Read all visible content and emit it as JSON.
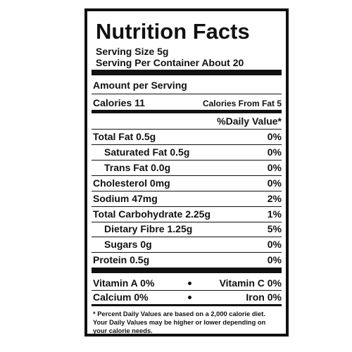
{
  "header": {
    "title": "Nutrition Facts",
    "serving_size": "Serving Size 5g",
    "servings_per_container": "Serving Per Container About 20"
  },
  "amount_per_serving": "Amount per Serving",
  "calories": "Calories 11",
  "calories_from_fat": "Calories From Fat 5",
  "daily_value_header": "%Daily Value*",
  "nutrients": [
    {
      "label": "Total Fat 0.5g",
      "dv": "0%",
      "indent": false
    },
    {
      "label": "Saturated Fat 0.5g",
      "dv": "0%",
      "indent": true
    },
    {
      "label": "Trans Fat 0.0g",
      "dv": "0%",
      "indent": true
    },
    {
      "label": "Cholesterol 0mg",
      "dv": "0%",
      "indent": false
    },
    {
      "label": "Sodium 47mg",
      "dv": "2%",
      "indent": false
    },
    {
      "label": "Total Carbohydrate 2.25g",
      "dv": "1%",
      "indent": false
    },
    {
      "label": "Dietary Fibre 1.25g",
      "dv": "5%",
      "indent": true
    },
    {
      "label": "Sugars 0g",
      "dv": "0%",
      "indent": true
    },
    {
      "label": "Protein 0.5g",
      "dv": "0%",
      "indent": false
    }
  ],
  "vitamins": [
    [
      "Vitamin A 0%",
      "Vitamin C 0%"
    ],
    [
      "Calcium 0%",
      "Iron 0%"
    ]
  ],
  "footnote": [
    "* Percent Daily Values are based on a 2,000 calorie diet.",
    "Your Daily Values may be higher or lower depending on",
    "your calorie needs."
  ]
}
